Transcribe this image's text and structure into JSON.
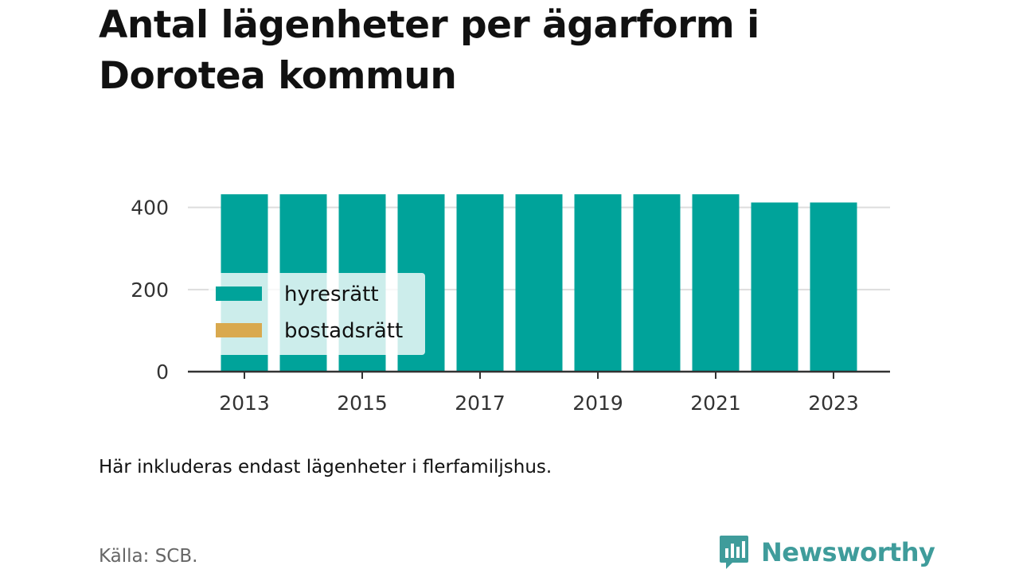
{
  "title": "Antal lägenheter per ägarform i Dorotea kommun",
  "note": "Här inkluderas endast lägenheter i flerfamiljshus.",
  "source": "Källa: SCB.",
  "brand": {
    "name": "Newsworthy",
    "icon": "newsworthy-logo-icon",
    "color": "#3f9c9b"
  },
  "chart_data": {
    "type": "bar",
    "stacked": true,
    "categories": [
      "2013",
      "2014",
      "2015",
      "2016",
      "2017",
      "2018",
      "2019",
      "2020",
      "2021",
      "2022",
      "2023"
    ],
    "x_tick_labels": [
      "2013",
      "2015",
      "2017",
      "2019",
      "2021",
      "2023"
    ],
    "series": [
      {
        "name": "hyresrätt",
        "color": "#00a39a",
        "values": [
          432,
          432,
          432,
          432,
          432,
          432,
          432,
          432,
          432,
          412,
          412
        ]
      },
      {
        "name": "bostadsrätt",
        "color": "#d9a94e",
        "values": [
          0,
          0,
          0,
          0,
          0,
          0,
          0,
          0,
          0,
          0,
          0
        ]
      }
    ],
    "ylim": [
      0,
      440
    ],
    "y_ticks": [
      0,
      200,
      400
    ],
    "grid": true,
    "legend_position": "left-middle",
    "xlabel": "",
    "ylabel": ""
  }
}
